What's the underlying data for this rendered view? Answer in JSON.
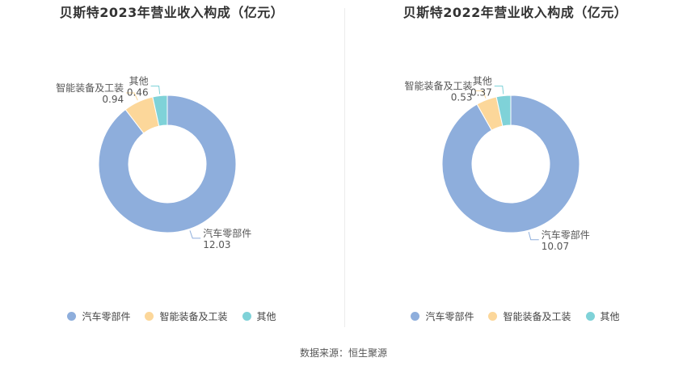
{
  "source": "数据来源：恒生聚源",
  "chart_data": [
    {
      "type": "pie",
      "title": "贝斯特2023年营业收入构成（亿元）",
      "categories": [
        "汽车零部件",
        "智能装备及工装",
        "其他"
      ],
      "values": [
        12.03,
        0.94,
        0.46
      ],
      "value_labels": [
        "12.03",
        "0.94",
        "0.46"
      ],
      "colors": [
        "#8eaedc",
        "#fcd79a",
        "#7fd2d8"
      ],
      "legend_position": "bottom"
    },
    {
      "type": "pie",
      "title": "贝斯特2022年营业收入构成（亿元）",
      "categories": [
        "汽车零部件",
        "智能装备及工装",
        "其他"
      ],
      "values": [
        10.07,
        0.53,
        0.37
      ],
      "value_labels": [
        "10.07",
        "0.53",
        "0.37"
      ],
      "colors": [
        "#8eaedc",
        "#fcd79a",
        "#7fd2d8"
      ],
      "legend_position": "bottom"
    }
  ]
}
